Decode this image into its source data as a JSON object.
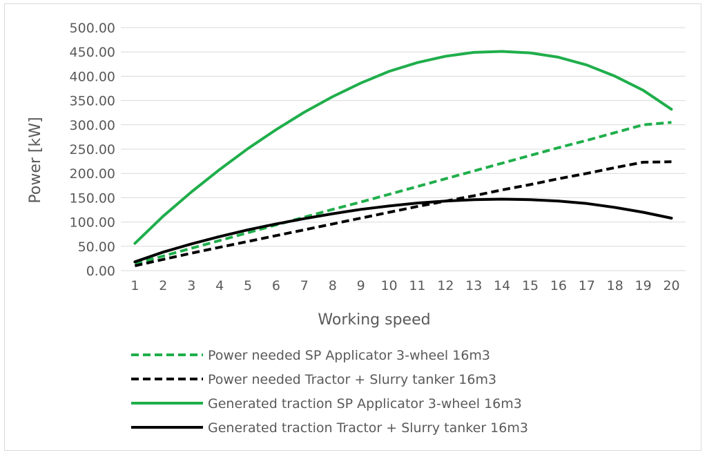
{
  "chart_data": {
    "type": "line",
    "title": "",
    "xlabel": "Working speed",
    "ylabel": "Power [kW]",
    "x": [
      1,
      2,
      3,
      4,
      5,
      6,
      7,
      8,
      9,
      10,
      11,
      12,
      13,
      14,
      15,
      16,
      17,
      18,
      19,
      20
    ],
    "ylim": [
      0,
      500
    ],
    "yticks": [
      "0.00",
      "50.00",
      "100.00",
      "150.00",
      "200.00",
      "250.00",
      "300.00",
      "350.00",
      "400.00",
      "450.00",
      "500.00"
    ],
    "grid": "horizontal",
    "legend_position": "bottom",
    "series": [
      {
        "name": "Power needed SP Applicator 3-wheel 16m3",
        "color": "#1fae4b",
        "style": "dashed",
        "values": [
          14,
          30,
          46,
          62,
          78,
          94,
          110,
          126,
          141,
          157,
          173,
          189,
          205,
          221,
          237,
          253,
          268,
          284,
          300,
          305
        ]
      },
      {
        "name": "Power needed Tractor + Slurry tanker 16m3",
        "color": "#000000",
        "style": "dashed",
        "values": [
          10,
          23,
          36,
          48,
          60,
          72,
          84,
          96,
          108,
          120,
          132,
          143,
          154,
          166,
          177,
          189,
          200,
          212,
          223,
          224
        ]
      },
      {
        "name": "Generated traction SP Applicator 3-wheel 16m3",
        "color": "#1fae4b",
        "style": "solid",
        "values": [
          56,
          112,
          162,
          208,
          251,
          290,
          326,
          358,
          386,
          410,
          428,
          441,
          449,
          451,
          448,
          439,
          423,
          400,
          371,
          332
        ]
      },
      {
        "name": "Generated traction Tractor + Slurry tanker 16m3",
        "color": "#000000",
        "style": "solid",
        "values": [
          18,
          38,
          55,
          70,
          84,
          96,
          107,
          117,
          126,
          133,
          139,
          143,
          146,
          147,
          146,
          143,
          138,
          130,
          120,
          108
        ]
      }
    ]
  }
}
